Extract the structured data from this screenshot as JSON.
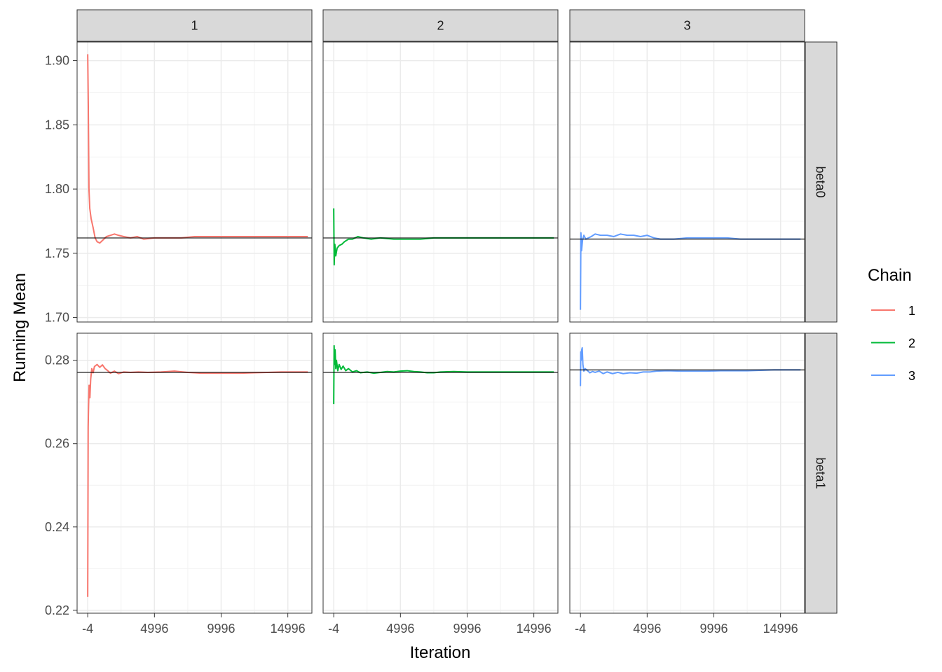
{
  "chart_data": {
    "type": "line",
    "facet_columns": [
      "1",
      "2",
      "3"
    ],
    "facet_rows": [
      "beta0",
      "beta1"
    ],
    "xlabel": "Iteration",
    "ylabel": "Running Mean",
    "x_ticks": [
      -4,
      4996,
      9996,
      14996
    ],
    "x_range": [
      -800,
      16800
    ],
    "x_end": 16496,
    "legend": {
      "title": "Chain",
      "position": "right",
      "entries": [
        {
          "label": "1",
          "color": "#F8766D"
        },
        {
          "label": "2",
          "color": "#00BA38"
        },
        {
          "label": "3",
          "color": "#619CFF"
        }
      ]
    },
    "rows": [
      {
        "name": "beta0",
        "y_ticks": [
          1.7,
          1.75,
          1.8,
          1.85,
          1.9
        ],
        "y_tick_labels": [
          "1.70",
          "1.75",
          "1.80",
          "1.85",
          "1.90"
        ],
        "y_range": [
          1.6965,
          1.9145
        ],
        "reference": [
          1.762,
          1.762,
          1.761
        ],
        "series": [
          {
            "chain": "1",
            "points": [
              [
                -4,
                1.905
              ],
              [
                40,
                1.865
              ],
              [
                90,
                1.8
              ],
              [
                150,
                1.785
              ],
              [
                250,
                1.777
              ],
              [
                400,
                1.77
              ],
              [
                550,
                1.762
              ],
              [
                700,
                1.759
              ],
              [
                900,
                1.758
              ],
              [
                1100,
                1.76
              ],
              [
                1400,
                1.763
              ],
              [
                1700,
                1.764
              ],
              [
                2000,
                1.765
              ],
              [
                2300,
                1.764
              ],
              [
                2700,
                1.763
              ],
              [
                3200,
                1.762
              ],
              [
                3700,
                1.763
              ],
              [
                4200,
                1.761
              ],
              [
                5000,
                1.762
              ],
              [
                6000,
                1.762
              ],
              [
                7000,
                1.762
              ],
              [
                8000,
                1.763
              ],
              [
                9000,
                1.763
              ],
              [
                10000,
                1.763
              ],
              [
                11000,
                1.763
              ],
              [
                12000,
                1.763
              ],
              [
                13000,
                1.763
              ],
              [
                14000,
                1.763
              ],
              [
                15000,
                1.763
              ],
              [
                16496,
                1.763
              ]
            ]
          },
          {
            "chain": "2",
            "points": [
              [
                -4,
                1.785
              ],
              [
                30,
                1.741
              ],
              [
                80,
                1.757
              ],
              [
                150,
                1.748
              ],
              [
                250,
                1.754
              ],
              [
                400,
                1.756
              ],
              [
                600,
                1.757
              ],
              [
                800,
                1.759
              ],
              [
                1100,
                1.761
              ],
              [
                1400,
                1.761
              ],
              [
                1800,
                1.763
              ],
              [
                2200,
                1.762
              ],
              [
                2800,
                1.761
              ],
              [
                3500,
                1.762
              ],
              [
                4500,
                1.761
              ],
              [
                5500,
                1.761
              ],
              [
                6500,
                1.761
              ],
              [
                7500,
                1.762
              ],
              [
                8500,
                1.762
              ],
              [
                9500,
                1.762
              ],
              [
                10500,
                1.762
              ],
              [
                12000,
                1.762
              ],
              [
                13500,
                1.762
              ],
              [
                15000,
                1.762
              ],
              [
                16496,
                1.762
              ]
            ]
          },
          {
            "chain": "3",
            "points": [
              [
                -4,
                1.706
              ],
              [
                30,
                1.766
              ],
              [
                80,
                1.752
              ],
              [
                150,
                1.76
              ],
              [
                250,
                1.764
              ],
              [
                400,
                1.761
              ],
              [
                600,
                1.762
              ],
              [
                800,
                1.763
              ],
              [
                1100,
                1.765
              ],
              [
                1500,
                1.764
              ],
              [
                2000,
                1.764
              ],
              [
                2500,
                1.763
              ],
              [
                3000,
                1.765
              ],
              [
                3500,
                1.764
              ],
              [
                4000,
                1.764
              ],
              [
                4500,
                1.763
              ],
              [
                5000,
                1.764
              ],
              [
                5500,
                1.762
              ],
              [
                6000,
                1.761
              ],
              [
                7000,
                1.761
              ],
              [
                8000,
                1.762
              ],
              [
                9000,
                1.762
              ],
              [
                10000,
                1.762
              ],
              [
                11000,
                1.762
              ],
              [
                12000,
                1.761
              ],
              [
                13000,
                1.761
              ],
              [
                14000,
                1.761
              ],
              [
                15000,
                1.761
              ],
              [
                16496,
                1.761
              ]
            ]
          }
        ]
      },
      {
        "name": "beta1",
        "y_ticks": [
          0.22,
          0.24,
          0.26,
          0.28
        ],
        "y_tick_labels": [
          "0.22",
          "0.24",
          "0.26",
          "0.28"
        ],
        "y_range": [
          0.2193,
          0.2865
        ],
        "reference": [
          0.2771,
          0.2771,
          0.2777
        ],
        "series": [
          {
            "chain": "1",
            "points": [
              [
                -4,
                0.2232
              ],
              [
                15,
                0.245
              ],
              [
                30,
                0.264
              ],
              [
                60,
                0.269
              ],
              [
                100,
                0.274
              ],
              [
                160,
                0.271
              ],
              [
                220,
                0.2755
              ],
              [
                300,
                0.278
              ],
              [
                400,
                0.277
              ],
              [
                500,
                0.2785
              ],
              [
                700,
                0.279
              ],
              [
                900,
                0.2783
              ],
              [
                1100,
                0.2789
              ],
              [
                1300,
                0.278
              ],
              [
                1500,
                0.2775
              ],
              [
                1700,
                0.2769
              ],
              [
                2000,
                0.2774
              ],
              [
                2300,
                0.2768
              ],
              [
                2700,
                0.2772
              ],
              [
                3200,
                0.2771
              ],
              [
                3800,
                0.2772
              ],
              [
                4500,
                0.2771
              ],
              [
                5500,
                0.2772
              ],
              [
                6500,
                0.2774
              ],
              [
                7500,
                0.2771
              ],
              [
                8500,
                0.2769
              ],
              [
                9500,
                0.2769
              ],
              [
                10500,
                0.2769
              ],
              [
                11500,
                0.2769
              ],
              [
                12500,
                0.277
              ],
              [
                13500,
                0.2771
              ],
              [
                14500,
                0.2772
              ],
              [
                15500,
                0.2772
              ],
              [
                16496,
                0.2772
              ]
            ]
          },
          {
            "chain": "2",
            "points": [
              [
                -4,
                0.2695
              ],
              [
                25,
                0.2835
              ],
              [
                60,
                0.279
              ],
              [
                100,
                0.2825
              ],
              [
                150,
                0.278
              ],
              [
                200,
                0.28
              ],
              [
                300,
                0.2775
              ],
              [
                400,
                0.279
              ],
              [
                550,
                0.2778
              ],
              [
                700,
                0.2786
              ],
              [
                900,
                0.2775
              ],
              [
                1100,
                0.278
              ],
              [
                1400,
                0.2772
              ],
              [
                1700,
                0.2775
              ],
              [
                2000,
                0.277
              ],
              [
                2500,
                0.2772
              ],
              [
                3000,
                0.2769
              ],
              [
                3500,
                0.2771
              ],
              [
                4000,
                0.2773
              ],
              [
                4500,
                0.2772
              ],
              [
                5000,
                0.2774
              ],
              [
                5500,
                0.2775
              ],
              [
                6000,
                0.2773
              ],
              [
                6500,
                0.2772
              ],
              [
                7000,
                0.277
              ],
              [
                7500,
                0.277
              ],
              [
                8000,
                0.2772
              ],
              [
                9000,
                0.2773
              ],
              [
                10000,
                0.2772
              ],
              [
                11000,
                0.2772
              ],
              [
                12000,
                0.2772
              ],
              [
                13000,
                0.2772
              ],
              [
                14000,
                0.2772
              ],
              [
                15000,
                0.2772
              ],
              [
                16496,
                0.2772
              ]
            ]
          },
          {
            "chain": "3",
            "points": [
              [
                -4,
                0.2738
              ],
              [
                20,
                0.282
              ],
              [
                50,
                0.28
              ],
              [
                90,
                0.2825
              ],
              [
                130,
                0.283
              ],
              [
                180,
                0.279
              ],
              [
                250,
                0.2774
              ],
              [
                350,
                0.278
              ],
              [
                500,
                0.2776
              ],
              [
                700,
                0.277
              ],
              [
                900,
                0.2773
              ],
              [
                1100,
                0.2771
              ],
              [
                1400,
                0.2774
              ],
              [
                1700,
                0.2768
              ],
              [
                2000,
                0.2772
              ],
              [
                2400,
                0.2768
              ],
              [
                2800,
                0.2771
              ],
              [
                3200,
                0.2768
              ],
              [
                3700,
                0.277
              ],
              [
                4200,
                0.2769
              ],
              [
                4700,
                0.2772
              ],
              [
                5200,
                0.2772
              ],
              [
                5700,
                0.2774
              ],
              [
                6500,
                0.2775
              ],
              [
                7500,
                0.2774
              ],
              [
                8500,
                0.2774
              ],
              [
                9500,
                0.2774
              ],
              [
                10500,
                0.2775
              ],
              [
                11500,
                0.2775
              ],
              [
                12500,
                0.2775
              ],
              [
                13500,
                0.2776
              ],
              [
                14500,
                0.2777
              ],
              [
                15500,
                0.2777
              ],
              [
                16496,
                0.2777
              ]
            ]
          }
        ]
      }
    ]
  }
}
